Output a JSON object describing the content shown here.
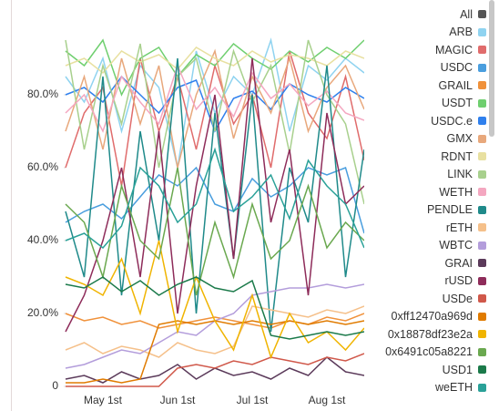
{
  "chart_data": {
    "type": "line",
    "categories": [
      null,
      null,
      "May 1st",
      null,
      null,
      null,
      "Jun 1st",
      null,
      null,
      null,
      "Jul 1st",
      null,
      null,
      null,
      "Aug 1st",
      null,
      null
    ],
    "ylim": [
      0,
      100
    ],
    "yticks": [
      0,
      {
        "value": 20,
        "label": "20.0%"
      },
      {
        "value": 40,
        "label": "40.0%"
      },
      {
        "value": 60,
        "label": "60.0%"
      },
      {
        "value": 80,
        "label": "80.0%"
      }
    ],
    "legend_all": {
      "name": "All",
      "color": "#555555"
    },
    "series": [
      {
        "name": "ARB",
        "color": "#8fd3f0",
        "values": [
          85,
          78,
          90,
          70,
          88,
          82,
          60,
          92,
          75,
          85,
          80,
          95,
          70,
          88,
          84,
          90,
          86
        ]
      },
      {
        "name": "MAGIC",
        "color": "#e06c6c",
        "values": [
          60,
          75,
          82,
          55,
          90,
          70,
          85,
          65,
          88,
          72,
          80,
          60,
          92,
          75,
          68,
          85,
          62
        ]
      },
      {
        "name": "USDC",
        "color": "#4a9ede",
        "values": [
          45,
          48,
          50,
          46,
          52,
          58,
          55,
          60,
          50,
          48,
          57,
          52,
          55,
          60,
          58,
          60,
          42
        ]
      },
      {
        "name": "GRAIL",
        "color": "#f0913a",
        "values": [
          20,
          18,
          19,
          17,
          18,
          16,
          17,
          18,
          19,
          18,
          17,
          16,
          18,
          17,
          19,
          18,
          20
        ]
      },
      {
        "name": "USDT",
        "color": "#6fcf6f",
        "values": [
          92,
          88,
          95,
          80,
          90,
          93,
          85,
          91,
          88,
          94,
          90,
          87,
          92,
          89,
          93,
          90,
          95
        ]
      },
      {
        "name": "USDC.e",
        "color": "#2f80ed",
        "values": [
          80,
          82,
          78,
          85,
          80,
          75,
          82,
          84,
          70,
          79,
          81,
          76,
          83,
          80,
          78,
          82,
          79
        ]
      },
      {
        "name": "GMX",
        "color": "#e8a87c",
        "values": [
          70,
          85,
          65,
          90,
          72,
          88,
          60,
          80,
          92,
          68,
          85,
          75,
          90,
          70,
          82,
          88,
          76
        ]
      },
      {
        "name": "RDNT",
        "color": "#e8e0a0",
        "values": [
          88,
          90,
          86,
          92,
          89,
          91,
          87,
          93,
          90,
          88,
          92,
          89,
          91,
          90,
          88,
          92,
          90
        ]
      },
      {
        "name": "LINK",
        "color": "#a8d08d",
        "values": [
          95,
          65,
          88,
          72,
          94,
          60,
          85,
          90,
          70,
          92,
          78,
          88,
          64,
          95,
          80,
          72,
          50
        ]
      },
      {
        "name": "WETH",
        "color": "#f4a7c0",
        "values": [
          75,
          80,
          70,
          85,
          78,
          72,
          88,
          76,
          82,
          74,
          86,
          79,
          83,
          77,
          81,
          75,
          73
        ]
      },
      {
        "name": "PENDLE",
        "color": "#1f8a8a",
        "values": [
          48,
          30,
          85,
          25,
          70,
          40,
          90,
          20,
          75,
          35,
          80,
          15,
          60,
          45,
          88,
          30,
          65
        ]
      },
      {
        "name": "rETH",
        "color": "#f5c08a",
        "values": [
          10,
          12,
          9,
          11,
          10,
          8,
          12,
          10,
          9,
          11,
          22,
          21,
          20,
          19,
          21,
          20,
          22
        ]
      },
      {
        "name": "WBTC",
        "color": "#b39ddb",
        "values": [
          5,
          6,
          8,
          10,
          9,
          12,
          15,
          14,
          18,
          20,
          25,
          26,
          27,
          27,
          28,
          27,
          28
        ]
      },
      {
        "name": "GRAI",
        "color": "#5b3a5a",
        "values": [
          2,
          3,
          1,
          4,
          2,
          3,
          6,
          2,
          5,
          3,
          4,
          2,
          5,
          3,
          8,
          4,
          3
        ]
      },
      {
        "name": "rUSD",
        "color": "#8e2c5a",
        "values": [
          15,
          25,
          40,
          60,
          30,
          70,
          20,
          55,
          80,
          35,
          90,
          45,
          65,
          25,
          75,
          50,
          55
        ]
      },
      {
        "name": "USDe",
        "color": "#d0584a",
        "values": [
          0,
          0,
          0,
          0,
          0,
          0,
          5,
          6,
          5,
          7,
          6,
          8,
          7,
          6,
          8,
          7,
          9
        ]
      },
      {
        "name": "0xff12470a969d",
        "color": "#e07b00",
        "values": [
          1,
          1,
          2,
          1,
          2,
          17,
          18,
          17,
          18,
          17,
          18,
          17,
          18,
          17,
          18,
          17,
          18
        ]
      },
      {
        "name": "0x18878df23e2a",
        "color": "#f0b400",
        "values": [
          30,
          28,
          25,
          35,
          20,
          40,
          15,
          30,
          18,
          10,
          25,
          8,
          20,
          12,
          15,
          10,
          16
        ]
      },
      {
        "name": "0x6491c05a8221",
        "color": "#6aa84f",
        "values": [
          50,
          45,
          30,
          55,
          40,
          35,
          60,
          25,
          45,
          30,
          50,
          35,
          40,
          55,
          38,
          45,
          40
        ]
      },
      {
        "name": "USD1",
        "color": "#1b7a4a",
        "values": [
          28,
          27,
          30,
          26,
          29,
          25,
          28,
          30,
          27,
          26,
          29,
          14,
          13,
          14,
          15,
          14,
          15
        ]
      },
      {
        "name": "weETH",
        "color": "#2aa198",
        "values": [
          40,
          42,
          38,
          44,
          60,
          55,
          45,
          50,
          65,
          48,
          52,
          58,
          46,
          62,
          55,
          50,
          38
        ]
      }
    ]
  }
}
